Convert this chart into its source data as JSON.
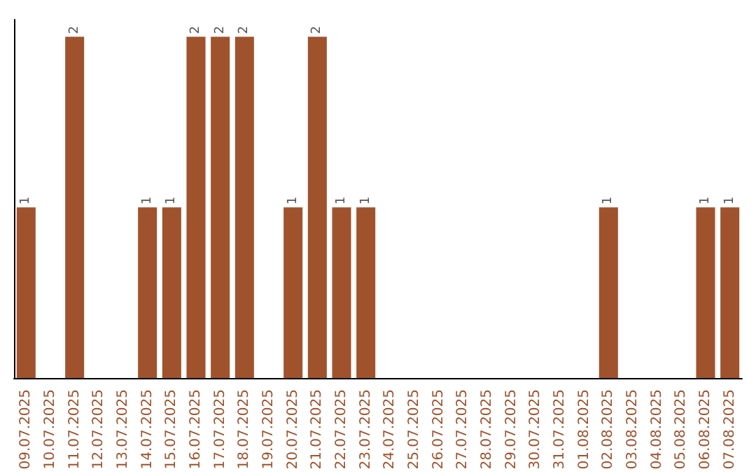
{
  "chart_data": {
    "type": "bar",
    "categories": [
      "09.07.2025",
      "10.07.2025",
      "11.07.2025",
      "12.07.2025",
      "13.07.2025",
      "14.07.2025",
      "15.07.2025",
      "16.07.2025",
      "17.07.2025",
      "18.07.2025",
      "19.07.2025",
      "20.07.2025",
      "21.07.2025",
      "22.07.2025",
      "23.07.2025",
      "24.07.2025",
      "25.07.2025",
      "26.07.2025",
      "27.07.2025",
      "28.07.2025",
      "29.07.2025",
      "30.07.2025",
      "31.07.2025",
      "01.08.2025",
      "02.08.2025",
      "03.08.2025",
      "04.08.2025",
      "05.08.2025",
      "06.08.2025",
      "07.08.2025"
    ],
    "values": [
      1,
      0,
      2,
      0,
      0,
      1,
      1,
      2,
      2,
      2,
      0,
      1,
      2,
      1,
      1,
      0,
      0,
      0,
      0,
      0,
      0,
      0,
      0,
      0,
      1,
      0,
      0,
      0,
      1,
      1
    ],
    "value_labels": [
      "1",
      null,
      "2",
      null,
      null,
      "1",
      "1",
      "2",
      "2",
      "2",
      null,
      "1",
      "2",
      "1",
      "1",
      null,
      null,
      null,
      null,
      null,
      null,
      null,
      null,
      null,
      "1",
      null,
      null,
      null,
      "1",
      "1"
    ],
    "color": "#a0522d",
    "grid": false,
    "tick_labels": "x"
  }
}
